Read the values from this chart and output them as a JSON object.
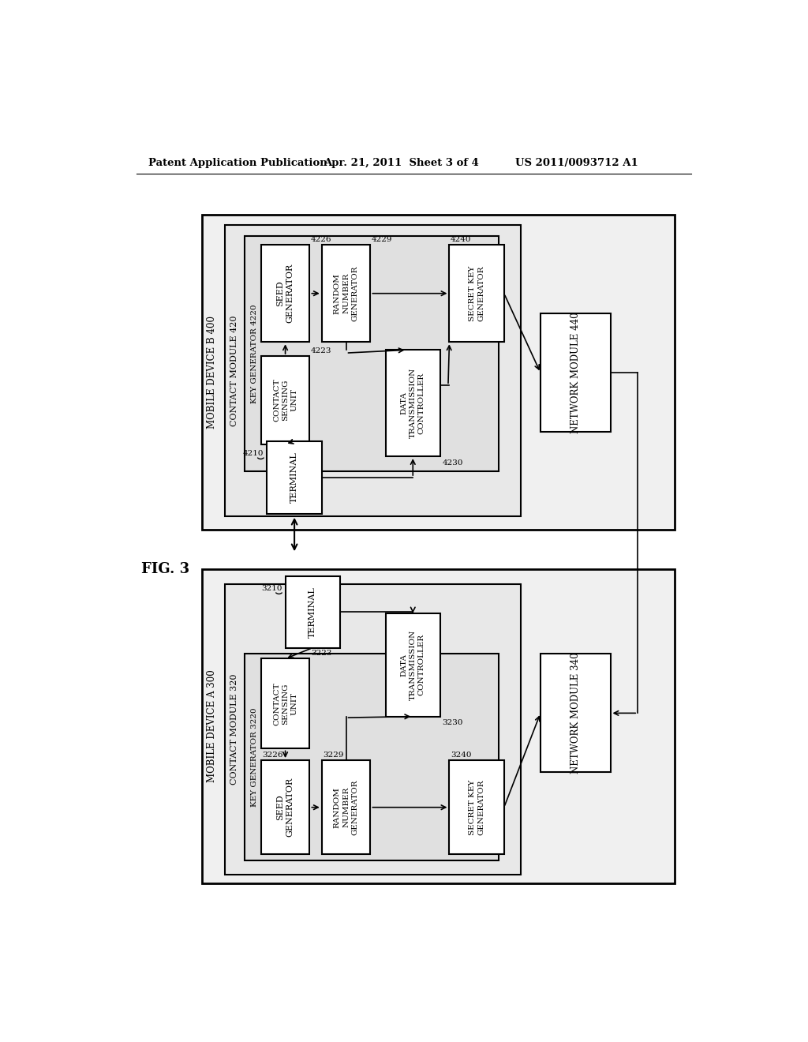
{
  "header_left": "Patent Application Publication",
  "header_mid": "Apr. 21, 2011  Sheet 3 of 4",
  "header_right": "US 2011/0093712 A1",
  "fig_label": "FIG. 3",
  "bg": "#ffffff"
}
